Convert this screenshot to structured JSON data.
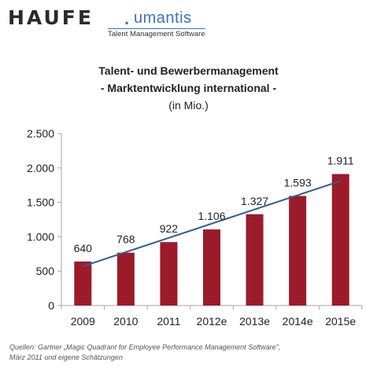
{
  "logo": {
    "brand": "HAUFE",
    "dot": ".",
    "product": "umantis",
    "tagline": "Talent Management Software"
  },
  "source": {
    "line1": "Quellen: Gartner „Magic Quadrant for Employee Performance Management Software\",",
    "line2": "März 2011 und eigene Schätzungen"
  },
  "colors": {
    "bar": "#9B1B2A",
    "trend": "#2D5F8C",
    "axis": "#a6a6a6"
  },
  "chart_data": {
    "type": "bar",
    "title": "Talent- und Bewerbermanagement",
    "subtitle": "- Marktentwicklung international -",
    "unit_note": "(in Mio.)",
    "categories": [
      "2009",
      "2010",
      "2011",
      "2012e",
      "2013e",
      "2014e",
      "2015e"
    ],
    "values": [
      640,
      768,
      922,
      1106,
      1327,
      1593,
      1911
    ],
    "value_labels": [
      "640",
      "768",
      "922",
      "1.106",
      "1.327",
      "1.593",
      "1.911"
    ],
    "ylim": [
      0,
      2500
    ],
    "yticks": [
      0,
      500,
      1000,
      1500,
      2000,
      2500
    ],
    "ytick_labels": [
      "0",
      "500",
      "1.000",
      "1.500",
      "2.000",
      "2.500"
    ],
    "trendline": {
      "start": 570,
      "end": 1810
    },
    "grid": false,
    "legend": "none"
  }
}
